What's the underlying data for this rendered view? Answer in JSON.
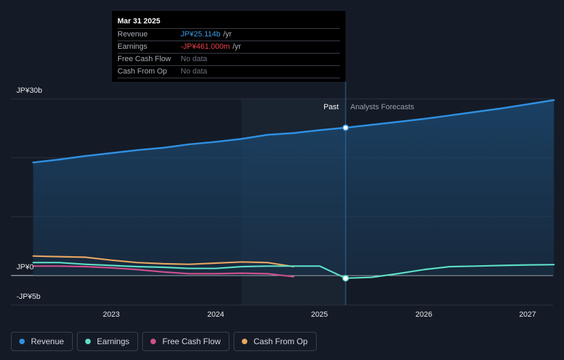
{
  "tooltip": {
    "date": "Mar 31 2025",
    "rows": [
      {
        "label": "Revenue",
        "value": "JP¥25.114b",
        "unit": "/yr",
        "color": "#3b9de8"
      },
      {
        "label": "Earnings",
        "value": "-JP¥461.000m",
        "unit": "/yr",
        "color": "#f0434b"
      },
      {
        "label": "Free Cash Flow",
        "value": "No data",
        "unit": "",
        "color": "#6b7280"
      },
      {
        "label": "Cash From Op",
        "value": "No data",
        "unit": "",
        "color": "#6b7280"
      }
    ]
  },
  "labels": {
    "past": "Past",
    "forecast": "Analysts Forecasts"
  },
  "legend": [
    {
      "label": "Revenue",
      "color": "#2f8fe0"
    },
    {
      "label": "Earnings",
      "color": "#5ee0c8"
    },
    {
      "label": "Free Cash Flow",
      "color": "#d0508c"
    },
    {
      "label": "Cash From Op",
      "color": "#e9a661"
    }
  ],
  "chart_data": {
    "type": "line",
    "title": "",
    "xlabel": "",
    "ylabel": "",
    "y_ticks": [
      {
        "value": 30,
        "label": "JP¥30b"
      },
      {
        "value": 0,
        "label": "JP¥0"
      },
      {
        "value": -5,
        "label": "-JP¥5b"
      }
    ],
    "ylim": [
      -5,
      30
    ],
    "xlim": [
      2022.2,
      2027.25
    ],
    "x_ticks": [
      {
        "value": 2023,
        "label": "2023"
      },
      {
        "value": 2024,
        "label": "2024"
      },
      {
        "value": 2025,
        "label": "2025"
      },
      {
        "value": 2026,
        "label": "2026"
      },
      {
        "value": 2027,
        "label": "2027"
      }
    ],
    "past_region_start": 2024.25,
    "divider": 2025.25,
    "series": [
      {
        "name": "Revenue",
        "color": "#2f8fe0",
        "x": [
          2022.25,
          2022.5,
          2022.75,
          2023.0,
          2023.25,
          2023.5,
          2023.75,
          2024.0,
          2024.25,
          2024.5,
          2024.75,
          2025.0,
          2025.25,
          2025.5,
          2025.75,
          2026.0,
          2026.25,
          2026.5,
          2026.75,
          2027.0,
          2027.25
        ],
        "values": [
          19.2,
          19.7,
          20.3,
          20.8,
          21.3,
          21.7,
          22.3,
          22.7,
          23.2,
          23.9,
          24.2,
          24.7,
          25.114,
          25.6,
          26.1,
          26.6,
          27.2,
          27.8,
          28.4,
          29.1,
          29.8
        ]
      },
      {
        "name": "Earnings",
        "color": "#5ee0c8",
        "x": [
          2022.25,
          2022.5,
          2022.75,
          2023.0,
          2023.25,
          2023.5,
          2023.75,
          2024.0,
          2024.25,
          2024.5,
          2024.75,
          2025.0,
          2025.25,
          2025.5,
          2025.75,
          2026.0,
          2026.25,
          2026.5,
          2026.75,
          2027.0,
          2027.25
        ],
        "values": [
          2.2,
          2.2,
          1.9,
          1.7,
          1.5,
          1.4,
          1.2,
          1.2,
          1.5,
          1.6,
          1.6,
          1.6,
          -0.461,
          -0.3,
          0.3,
          1.0,
          1.5,
          1.6,
          1.7,
          1.8,
          1.85
        ]
      },
      {
        "name": "Free Cash Flow",
        "color": "#d0508c",
        "x": [
          2022.25,
          2022.5,
          2022.75,
          2023.0,
          2023.25,
          2023.5,
          2023.75,
          2024.0,
          2024.25,
          2024.5,
          2024.75
        ],
        "values": [
          1.6,
          1.6,
          1.5,
          1.3,
          1.0,
          0.6,
          0.3,
          0.3,
          0.4,
          0.3,
          -0.2
        ]
      },
      {
        "name": "Cash From Op",
        "color": "#e9a661",
        "x": [
          2022.25,
          2022.5,
          2022.75,
          2023.0,
          2023.25,
          2023.5,
          2023.75,
          2024.0,
          2024.25,
          2024.5,
          2024.75
        ],
        "values": [
          3.3,
          3.2,
          3.1,
          2.6,
          2.2,
          2.0,
          1.9,
          2.1,
          2.3,
          2.2,
          1.5
        ]
      }
    ]
  }
}
